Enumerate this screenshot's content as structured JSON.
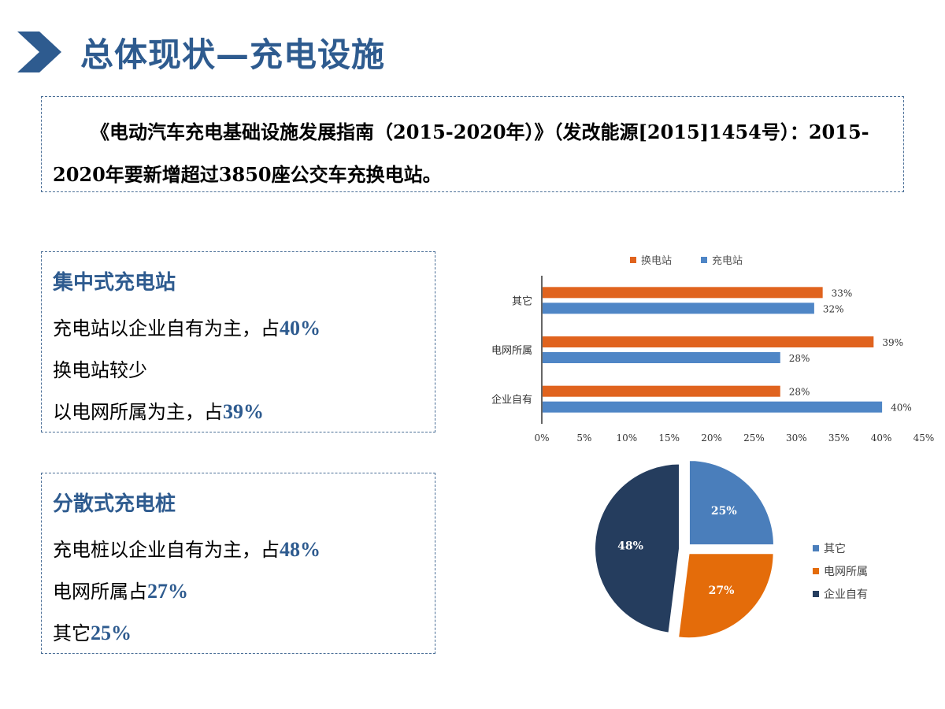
{
  "header": {
    "title": "总体现状—充电设施"
  },
  "intro": {
    "text": "《电动汽车充电基础设施发展指南（2015-2020年）》（发改能源[2015]1454号）：2015-2020年要新增超过3850座公交车充换电站。"
  },
  "central": {
    "heading": "集中式充电站",
    "lines": [
      {
        "text": "充电站以企业自有为主，占",
        "pct": "40%"
      },
      {
        "text": "换电站较少",
        "pct": ""
      },
      {
        "text": "以电网所属为主，占",
        "pct": "39%"
      }
    ]
  },
  "distributed": {
    "heading": "分散式充电桩",
    "lines": [
      {
        "text": "充电桩以企业自有为主，占",
        "pct": "48%"
      },
      {
        "text": "电网所属占",
        "pct": "27%"
      },
      {
        "text": "其它",
        "pct": "25%"
      }
    ]
  },
  "colors": {
    "title": "#2e5b8f",
    "orange": "#e0631e",
    "blue": "#4f86c6",
    "pie_blue": "#4a7ebb",
    "pie_orange": "#e46c0a",
    "pie_navy": "#253d5e"
  },
  "chart_data": [
    {
      "type": "bar",
      "orientation": "horizontal",
      "categories": [
        "其它",
        "电网所属",
        "企业自有"
      ],
      "series": [
        {
          "name": "换电站",
          "color": "#e0631e",
          "values": [
            33,
            39,
            28
          ],
          "labels": [
            "33%",
            "39%",
            "28%"
          ]
        },
        {
          "name": "充电站",
          "color": "#4f86c6",
          "values": [
            32,
            28,
            40
          ],
          "labels": [
            "32%",
            "28%",
            "40%"
          ]
        }
      ],
      "xlim": [
        0,
        45
      ],
      "xticks": [
        "0%",
        "5%",
        "10%",
        "15%",
        "20%",
        "25%",
        "30%",
        "35%",
        "40%",
        "45%"
      ],
      "legend": "top",
      "grid": false
    },
    {
      "type": "pie",
      "slices": [
        {
          "label": "其它",
          "value": 25,
          "text": "25%",
          "color": "#4a7ebb"
        },
        {
          "label": "电网所属",
          "value": 27,
          "text": "27%",
          "color": "#e46c0a"
        },
        {
          "label": "企业自有",
          "value": 48,
          "text": "48%",
          "color": "#253d5e"
        }
      ],
      "legend": "right"
    }
  ]
}
